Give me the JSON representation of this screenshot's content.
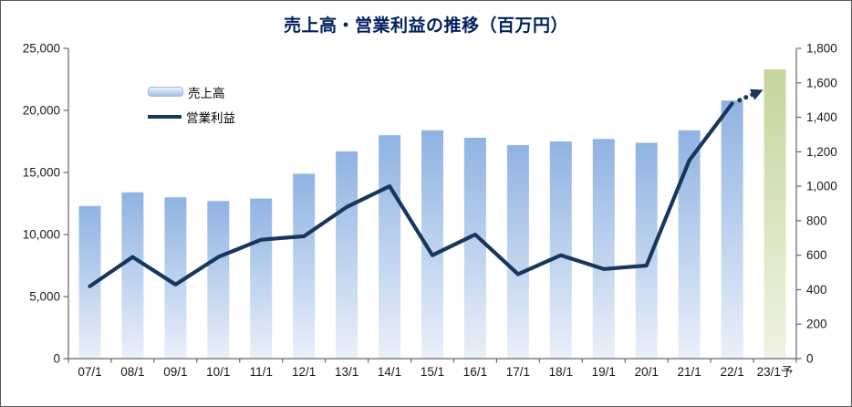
{
  "title": "売上高・営業利益の推移（百万円）",
  "legend": {
    "position": "inside-top-left",
    "items": [
      {
        "label": "売上高",
        "series_type": "bar"
      },
      {
        "label": "営業利益",
        "series_type": "line"
      }
    ]
  },
  "chart_data": {
    "type": "combo",
    "subtypes": [
      "bar",
      "line"
    ],
    "title": "売上高・営業利益の推移（百万円）",
    "categories": [
      "07/1",
      "08/1",
      "09/1",
      "10/1",
      "11/1",
      "12/1",
      "13/1",
      "14/1",
      "15/1",
      "16/1",
      "17/1",
      "18/1",
      "19/1",
      "20/1",
      "21/1",
      "22/1",
      "23/1予"
    ],
    "series": [
      {
        "name": "売上高",
        "type": "bar",
        "axis": "left",
        "values": [
          12300,
          13400,
          13000,
          12700,
          12900,
          14900,
          16700,
          18000,
          18400,
          17800,
          17200,
          17500,
          17700,
          17400,
          18400,
          20800,
          23300
        ],
        "forecast_index": 16
      },
      {
        "name": "営業利益",
        "type": "line",
        "axis": "right",
        "values": [
          420,
          590,
          430,
          590,
          690,
          710,
          880,
          1000,
          600,
          720,
          490,
          600,
          520,
          540,
          1150,
          1480,
          1560
        ],
        "forecast_index": 16,
        "forecast_style": "dotted-arrow"
      }
    ],
    "left_axis": {
      "min": 0,
      "max": 25000,
      "step": 5000,
      "tick_labels": [
        "0",
        "5,000",
        "10,000",
        "15,000",
        "20,000",
        "25,000"
      ]
    },
    "right_axis": {
      "min": 0,
      "max": 1800,
      "step": 200,
      "tick_labels": [
        "0",
        "200",
        "400",
        "600",
        "800",
        "1,000",
        "1,200",
        "1,400",
        "1,600",
        "1,800"
      ]
    },
    "grid": false,
    "plot_background": "#ffffff",
    "colors": {
      "bar_top": "#8FB3E2",
      "bar_bottom": "#EAF0FA",
      "forecast_bar_top": "#C3D69B",
      "forecast_bar_bottom": "#EFF3E4",
      "line": "#17375E",
      "title": "#002060",
      "axis_line": "#666666",
      "label": "#1A1A1A",
      "legend_swatch_top": "#EAF2FA",
      "legend_swatch_bottom": "#A3C1E5"
    }
  }
}
